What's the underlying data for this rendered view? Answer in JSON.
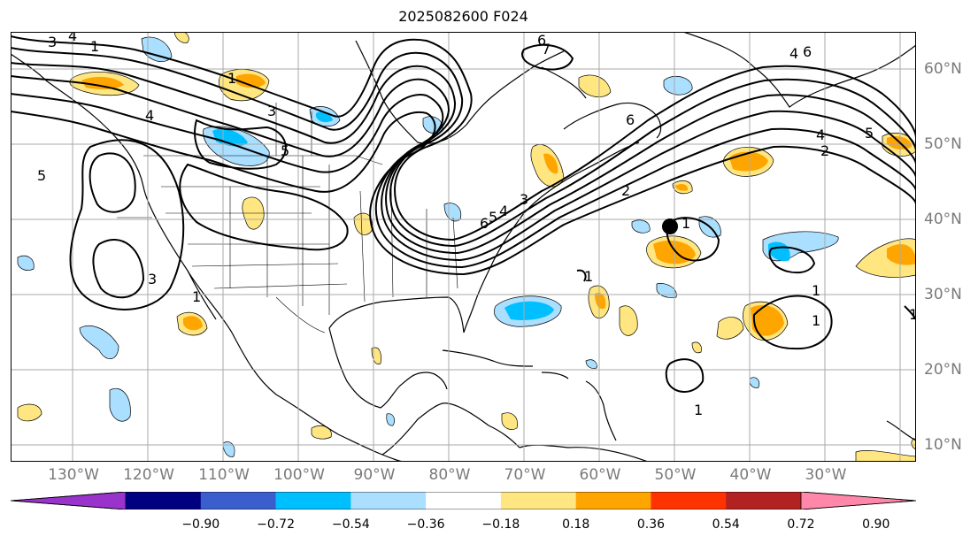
{
  "title": "2025082600 F024",
  "lon_labels": [
    "130°W",
    "120°W",
    "110°W",
    "100°W",
    "90°W",
    "80°W",
    "70°W",
    "60°W",
    "50°W",
    "40°W",
    "30°W"
  ],
  "lat_labels": [
    "60°N",
    "50°N",
    "40°N",
    "30°N",
    "20°N",
    "10°N"
  ],
  "contour_labels": [
    "3",
    "4",
    "1",
    "3",
    "4",
    "5",
    "3",
    "1",
    "1",
    "6",
    "7",
    "6",
    "5",
    "4",
    "3",
    "2",
    "6",
    "5",
    "4",
    "6",
    "4",
    "2",
    "5",
    "1",
    "1",
    "1",
    "1",
    "1",
    "1"
  ],
  "colorbar": {
    "ticks": [
      "−0.90",
      "−0.72",
      "−0.54",
      "−0.36",
      "−0.18",
      "0.18",
      "0.36",
      "0.54",
      "0.72",
      "0.90"
    ],
    "colors": [
      "#9933cc",
      "#000080",
      "#3a5fcd",
      "#00bfff",
      "#aadfff",
      "#ffffff",
      "#ffe680",
      "#ffa500",
      "#ff3300",
      "#b22222",
      "#ff88aa"
    ]
  },
  "colors": {
    "grid": "#aaaaaa",
    "coast": "#000000",
    "contour": "#000000"
  },
  "marker": "storm-center"
}
